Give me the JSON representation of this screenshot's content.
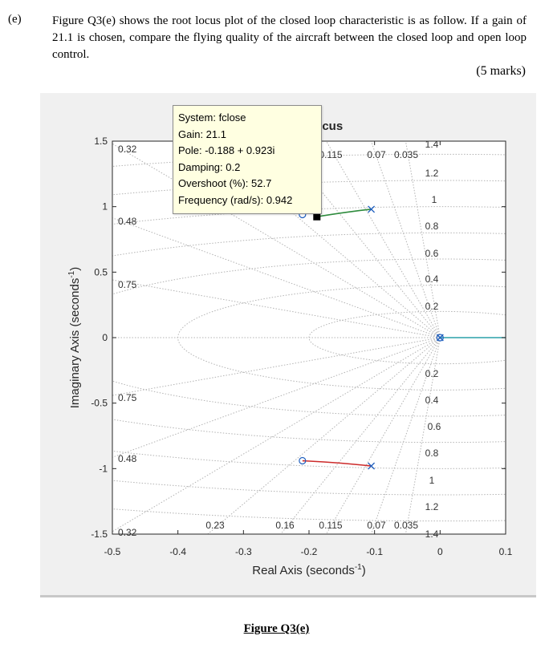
{
  "question": {
    "label": "(e)",
    "text": "Figure Q3(e) shows the root locus plot of the closed loop characteristic is as follow.  If a gain of 21.1 is chosen, compare the flying quality of the aircraft between the closed loop and open loop control.",
    "marks": "(5 marks)"
  },
  "caption": "Figure Q3(e)",
  "chart_data": {
    "type": "line",
    "title": "Locus",
    "title_visible_fragment": ".ocus",
    "xlabel": "Real Axis (seconds",
    "xlabel_sup": "-1",
    "xlabel_close": ")",
    "ylabel": "Imaginary Axis (seconds",
    "ylabel_sup": "-1",
    "ylabel_close": ")",
    "xlim": [
      -0.5,
      0.1
    ],
    "ylim": [
      -1.5,
      1.5
    ],
    "x_ticks": [
      -0.5,
      -0.4,
      -0.3,
      -0.2,
      -0.1,
      0,
      0.1
    ],
    "x_tick_labels": [
      "-0.5",
      "-0.4",
      "-0.3",
      "-0.2",
      "-0.1",
      "0",
      "0.1"
    ],
    "y_ticks": [
      1.5,
      1,
      0.5,
      0,
      -0.5,
      -1,
      -1.5
    ],
    "y_tick_labels": [
      "1.5",
      "1",
      "0.5",
      "0",
      "-0.5",
      "-1",
      "-1.5"
    ],
    "grid": "sgrid",
    "damping_lines": [
      0.32,
      0.48,
      0.75,
      0.23,
      0.16,
      0.115,
      0.07,
      0.035
    ],
    "damping_labels": {
      "left_top": [
        "0.32",
        "0.48",
        "0.75"
      ],
      "left_bottom": [
        "0.75",
        "0.48",
        "0.32"
      ],
      "top": [
        "0.115",
        "0.07",
        "0.035"
      ],
      "bottom": [
        "0.23",
        "0.16",
        "0.115",
        "0.07",
        "0.035"
      ]
    },
    "frequency_circles": [
      0.2,
      0.4,
      0.6,
      0.8,
      1,
      1.2,
      1.4
    ],
    "frequency_labels": [
      "1.4",
      "1.2",
      "1",
      "0.8",
      "0.6",
      "0.4",
      "0.2"
    ],
    "poles": [
      {
        "re": -0.105,
        "im": 0.98
      },
      {
        "re": -0.105,
        "im": -0.98
      },
      {
        "re": 0.0,
        "im": 0.0
      }
    ],
    "zeros": [
      {
        "re": -0.21,
        "im": 0.94
      },
      {
        "re": -0.21,
        "im": -0.94
      },
      {
        "re": 0.0,
        "im": 0.0
      }
    ],
    "series": [
      {
        "color": "#2e8b3d",
        "points": [
          [
            -0.105,
            0.98
          ],
          [
            -0.14,
            0.962
          ],
          [
            -0.188,
            0.923
          ]
        ]
      },
      {
        "color": "#cc2a2a",
        "points": [
          [
            -0.105,
            -0.98
          ],
          [
            -0.15,
            -0.955
          ],
          [
            -0.21,
            -0.94
          ]
        ]
      },
      {
        "color": "#2aa0aa",
        "points": [
          [
            0.0,
            0.0
          ],
          [
            0.1,
            0.0
          ]
        ]
      }
    ],
    "selected_point": {
      "re": -0.188,
      "im": 0.923
    },
    "datatip": [
      "System: fclose",
      "Gain: 21.1",
      "Pole: -0.188 + 0.923i",
      "Damping: 0.2",
      "Overshoot (%): 52.7",
      "Frequency (rad/s): 0.942"
    ]
  }
}
